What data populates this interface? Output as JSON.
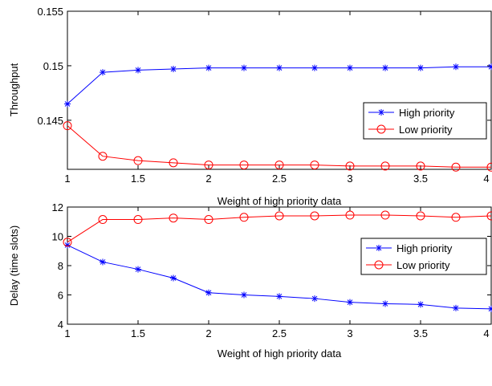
{
  "chart_data": [
    {
      "type": "line",
      "title": "",
      "xlabel": "Weight of high priority data",
      "ylabel": "Throughput",
      "xlim": [
        1,
        4
      ],
      "ylim": [
        0.1405,
        0.155
      ],
      "xticks": [
        1,
        1.5,
        2,
        2.5,
        3,
        3.5,
        4
      ],
      "xtick_labels": [
        "1",
        "1.5",
        "2",
        "2.5",
        "3",
        "3.5",
        "4"
      ],
      "yticks": [
        0.145,
        0.15,
        0.155
      ],
      "ytick_labels": [
        "0.145",
        "0.15",
        "0.155"
      ],
      "grid": false,
      "legend_position": "right",
      "x": [
        1,
        1.25,
        1.5,
        1.75,
        2,
        2.25,
        2.5,
        2.75,
        3,
        3.25,
        3.5,
        3.75,
        4
      ],
      "series": [
        {
          "name": "High priority",
          "color": "#0000ff",
          "marker": "asterisk",
          "values": [
            0.1465,
            0.1494,
            0.1496,
            0.1497,
            0.1498,
            0.1498,
            0.1498,
            0.1498,
            0.1498,
            0.1498,
            0.1498,
            0.1499,
            0.1499
          ]
        },
        {
          "name": "Low priority",
          "color": "#ff0000",
          "marker": "circle",
          "values": [
            0.1445,
            0.1417,
            0.1413,
            0.1411,
            0.1409,
            0.1409,
            0.1409,
            0.1409,
            0.1408,
            0.1408,
            0.1408,
            0.1407,
            0.1407
          ]
        }
      ]
    },
    {
      "type": "line",
      "title": "",
      "xlabel": "Weight of high priority data",
      "ylabel": "Delay (time slots)",
      "xlim": [
        1,
        4
      ],
      "ylim": [
        4,
        12
      ],
      "xticks": [
        1,
        1.5,
        2,
        2.5,
        3,
        3.5,
        4
      ],
      "xtick_labels": [
        "1",
        "1.5",
        "2",
        "2.5",
        "3",
        "3.5",
        "4"
      ],
      "yticks": [
        4,
        6,
        8,
        10,
        12
      ],
      "ytick_labels": [
        "4",
        "6",
        "8",
        "10",
        "12"
      ],
      "grid": false,
      "legend_position": "right",
      "x": [
        1,
        1.25,
        1.5,
        1.75,
        2,
        2.25,
        2.5,
        2.75,
        3,
        3.25,
        3.5,
        3.75,
        4
      ],
      "series": [
        {
          "name": "High priority",
          "color": "#0000ff",
          "marker": "asterisk",
          "values": [
            9.4,
            8.25,
            7.75,
            7.15,
            6.15,
            6.0,
            5.9,
            5.75,
            5.5,
            5.4,
            5.35,
            5.1,
            5.05
          ]
        },
        {
          "name": "Low priority",
          "color": "#ff0000",
          "marker": "circle",
          "values": [
            9.6,
            11.15,
            11.15,
            11.25,
            11.15,
            11.3,
            11.4,
            11.4,
            11.45,
            11.45,
            11.4,
            11.3,
            11.4
          ]
        }
      ]
    }
  ]
}
